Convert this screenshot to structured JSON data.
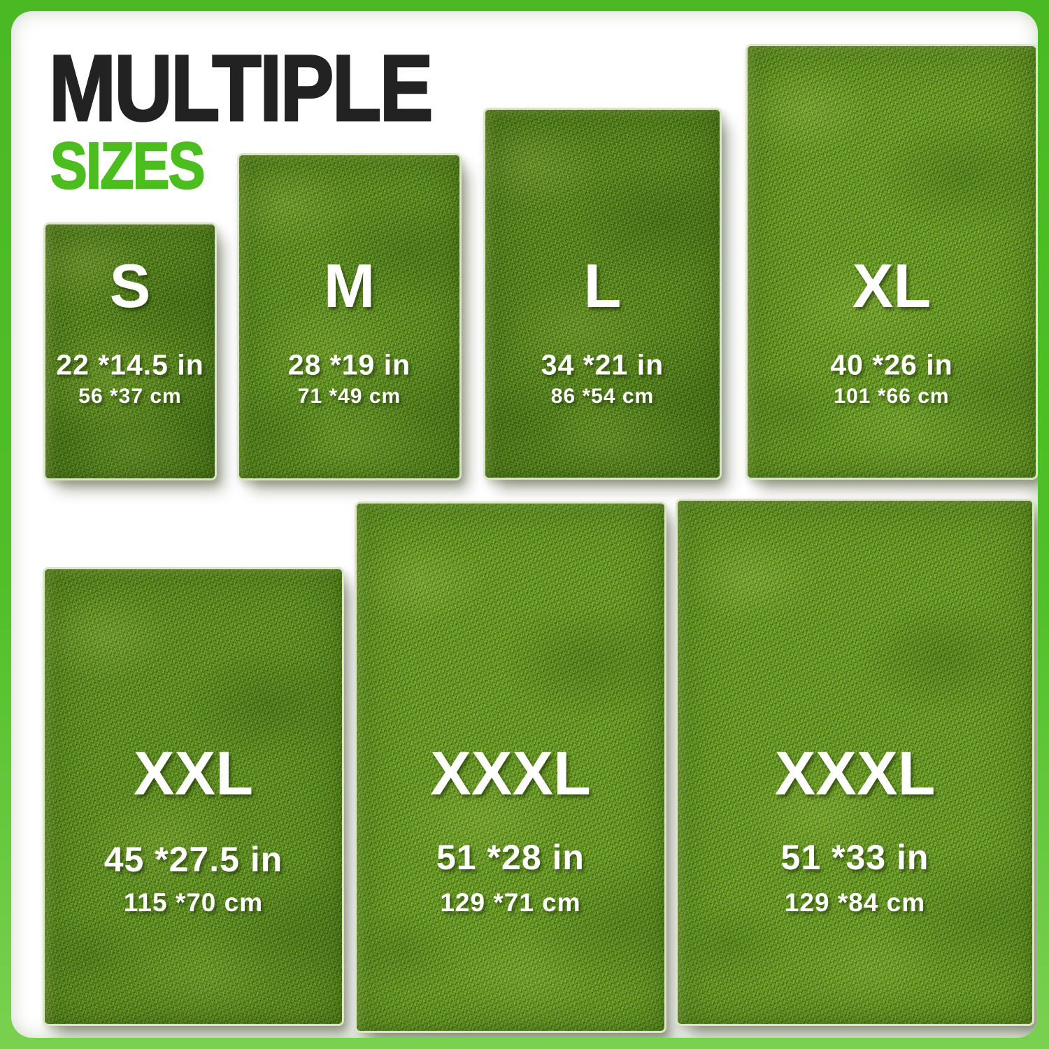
{
  "header": {
    "title": "MULTIPLE",
    "subtitle": "SIZES"
  },
  "palette": {
    "frame_green": "#4CBB24",
    "subtitle_green": "#4BBD1E",
    "title_black": "#222222",
    "grass_green": "#5E8C22",
    "label_white": "#FFFFFF"
  },
  "sizes": [
    {
      "label": "S",
      "inches": "22 *14.5 in",
      "cm": "56 *37 cm"
    },
    {
      "label": "M",
      "inches": "28 *19 in",
      "cm": "71 *49 cm"
    },
    {
      "label": "L",
      "inches": "34 *21 in",
      "cm": "86 *54 cm"
    },
    {
      "label": "XL",
      "inches": "40 *26 in",
      "cm": "101 *66 cm"
    },
    {
      "label": "XXL",
      "inches": "45 *27.5 in",
      "cm": "115 *70 cm"
    },
    {
      "label": "XXXL",
      "inches": "51 *28 in",
      "cm": "129 *71 cm"
    },
    {
      "label": "XXXL",
      "inches": "51 *33 in",
      "cm": "129 *84 cm"
    }
  ]
}
